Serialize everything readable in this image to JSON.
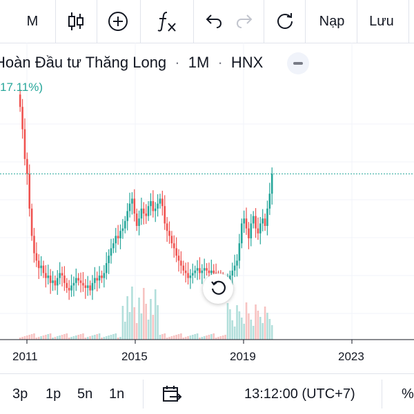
{
  "toolbar": {
    "interval_label": "M",
    "load_label": "Nạp",
    "save_label": "Lưu",
    "icons": [
      "candles-icon",
      "add-indicator-icon",
      "fx-icon",
      "undo-icon",
      "redo-icon",
      "refresh-icon"
    ]
  },
  "legend": {
    "title": "Hoàn Đầu tư Thăng Long",
    "separator": "·",
    "interval": "1M",
    "exchange": "HNX",
    "change_pct": "17.11%)"
  },
  "chart_data": {
    "type": "candlestick",
    "x_tick_labels": [
      "2011",
      "2015",
      "2019",
      "2023"
    ],
    "x_range": [
      2010.0,
      2025.0
    ],
    "y_range": [
      0,
      1
    ],
    "last_price_line": true,
    "volume_bars": true,
    "colors": {
      "up": "#26a69a",
      "down": "#ef5350",
      "vol_up": "#b2dfdb",
      "vol_down": "#f7c3c2"
    },
    "closes": [
      0.93,
      0.84,
      0.72,
      0.66,
      0.52,
      0.41,
      0.34,
      0.31,
      0.28,
      0.29,
      0.26,
      0.24,
      0.25,
      0.22,
      0.23,
      0.21,
      0.24,
      0.26,
      0.25,
      0.22,
      0.2,
      0.19,
      0.21,
      0.22,
      0.24,
      0.23,
      0.22,
      0.21,
      0.2,
      0.21,
      0.19,
      0.22,
      0.24,
      0.23,
      0.25,
      0.24,
      0.26,
      0.3,
      0.33,
      0.36,
      0.38,
      0.41,
      0.4,
      0.43,
      0.44,
      0.47,
      0.51,
      0.54,
      0.56,
      0.5,
      0.45,
      0.48,
      0.52,
      0.5,
      0.49,
      0.53,
      0.55,
      0.51,
      0.52,
      0.54,
      0.56,
      0.53,
      0.46,
      0.43,
      0.41,
      0.38,
      0.36,
      0.33,
      0.31,
      0.29,
      0.27,
      0.26,
      0.24,
      0.25,
      0.26,
      0.27,
      0.28,
      0.26,
      0.27,
      0.28,
      0.27,
      0.26,
      0.27,
      0.26,
      0.25,
      0.24,
      0.22,
      0.21,
      0.2,
      0.22,
      0.25,
      0.27,
      0.29,
      0.31,
      0.38,
      0.46,
      0.48,
      0.44,
      0.4,
      0.46,
      0.49,
      0.44,
      0.42,
      0.46,
      0.48,
      0.45,
      0.52,
      0.58,
      0.66
    ]
  },
  "bottombar": {
    "ranges": [
      "3p",
      "1p",
      "5n",
      "1n"
    ],
    "time": "13:12:00 (UTC+7)",
    "percent_label": "%"
  }
}
